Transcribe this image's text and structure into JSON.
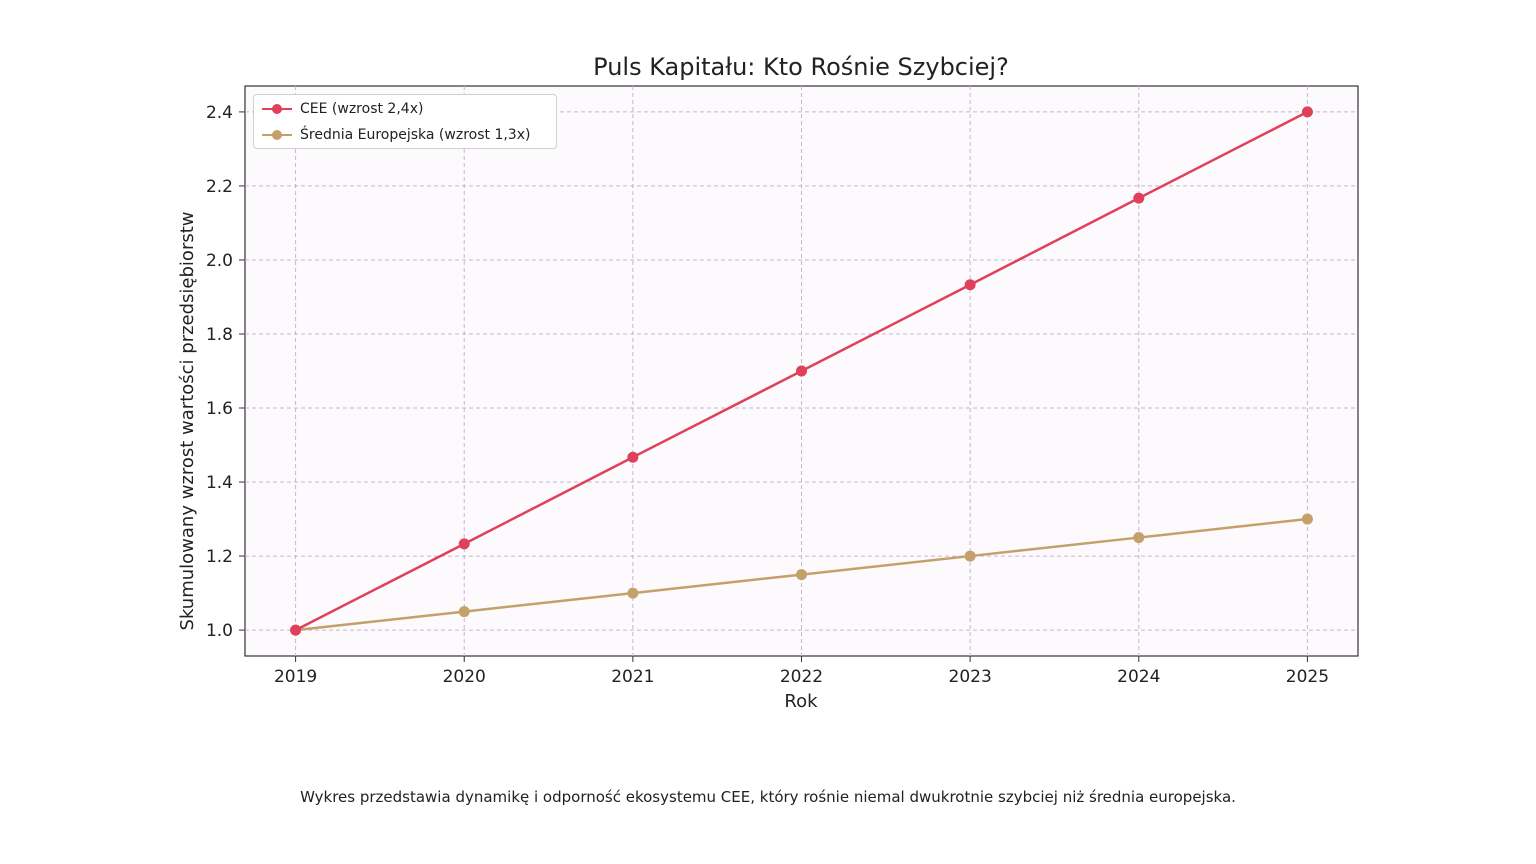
{
  "chart_data": {
    "type": "line",
    "title": "Puls Kapitału: Kto Rośnie Szybciej?",
    "xlabel": "Rok",
    "ylabel": "Skumulowany wzrost wartości przedsiębiorstw",
    "x": [
      2019,
      2020,
      2021,
      2022,
      2023,
      2024,
      2025
    ],
    "xticks": [
      "2019",
      "2020",
      "2021",
      "2022",
      "2023",
      "2024",
      "2025"
    ],
    "yticks": [
      "1.0",
      "1.2",
      "1.4",
      "1.6",
      "1.8",
      "2.0",
      "2.2",
      "2.4"
    ],
    "ylim": [
      0.93,
      2.47
    ],
    "xlim": [
      2018.7,
      2025.3
    ],
    "grid": true,
    "legend_position": "top-left",
    "series": [
      {
        "name": "CEE (wzrost 2,4x)",
        "color": "#e0405a",
        "values": [
          1.0,
          1.233,
          1.467,
          1.7,
          1.933,
          2.167,
          2.4
        ]
      },
      {
        "name": "Średnia Europejska (wzrost 1,3x)",
        "color": "#c4a06a",
        "values": [
          1.0,
          1.05,
          1.1,
          1.15,
          1.2,
          1.25,
          1.3
        ]
      }
    ]
  },
  "caption": "Wykres przedstawia dynamikę i odporność ekosystemu CEE, który rośnie niemal dwukrotnie szybciej niż średnia europejska."
}
